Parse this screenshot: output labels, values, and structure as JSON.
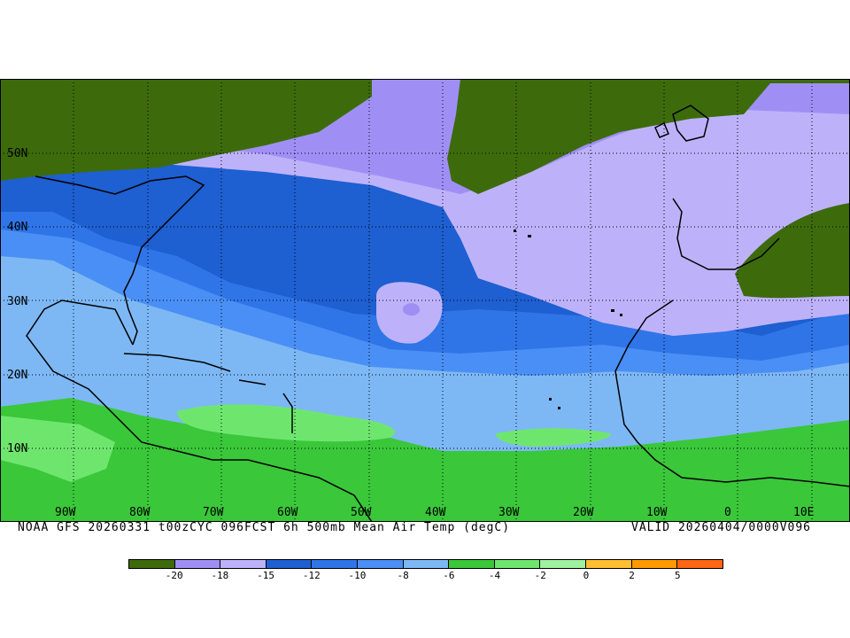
{
  "map": {
    "lat_labels": [
      "50N",
      "40N",
      "30N",
      "20N",
      "10N"
    ],
    "lon_labels": [
      "90W",
      "80W",
      "70W",
      "60W",
      "50W",
      "40W",
      "30W",
      "20W",
      "10W",
      "0",
      "10E"
    ],
    "land_color": "#3d6b0c",
    "coastline_color": "#000000",
    "gridline_style": "dotted"
  },
  "caption": {
    "left": "NOAA GFS 20260331 t00zCYC 096FCST 6h 500mb Mean Air Temp (degC)",
    "right": "VALID 20260404/0000V096"
  },
  "colorbar": {
    "colors": [
      "#3d6b0c",
      "#9f8ff5",
      "#bdb2fa",
      "#1e5fd1",
      "#2f75e8",
      "#4a8ff5",
      "#7db8f5",
      "#3ac73a",
      "#6ee66e",
      "#9ff09f",
      "#ffbf33",
      "#ff9900",
      "#ff6611"
    ],
    "labels": [
      "-20",
      "-18",
      "-15",
      "-12",
      "-10",
      "-8",
      "-6",
      "-4",
      "-2",
      "0",
      "2",
      "5"
    ]
  }
}
